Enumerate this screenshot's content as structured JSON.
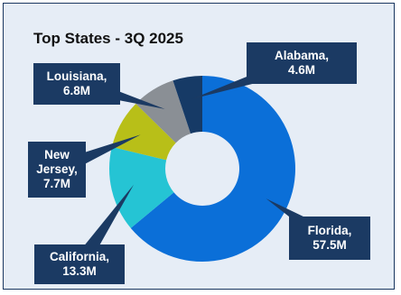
{
  "chart_data": {
    "type": "pie",
    "style": "donut",
    "title": "Top States - 3Q 2025",
    "categories": [
      "Florida",
      "California",
      "New Jersey",
      "Louisiana",
      "Alabama"
    ],
    "values": [
      57.5,
      13.3,
      7.7,
      6.8,
      4.6
    ],
    "value_labels": [
      "57.5M",
      "13.3M",
      "7.7M",
      "6.8M",
      "4.6M"
    ],
    "label_lines": {
      "florida": [
        "Florida,",
        "57.5M"
      ],
      "california": [
        "California,",
        "13.3M"
      ],
      "newjersey": [
        "New",
        "Jersey,",
        "7.7M"
      ],
      "louisiana": [
        "Louisiana,",
        "6.8M"
      ],
      "alabama": [
        "Alabama,",
        "4.6M"
      ]
    },
    "colors": [
      "#0b6fd8",
      "#25c4d4",
      "#b8bf18",
      "#8a8f95",
      "#163a66"
    ],
    "callout_color": "#1b3a63",
    "background_color": "#e6edf6",
    "legend": "none",
    "grid": false
  }
}
